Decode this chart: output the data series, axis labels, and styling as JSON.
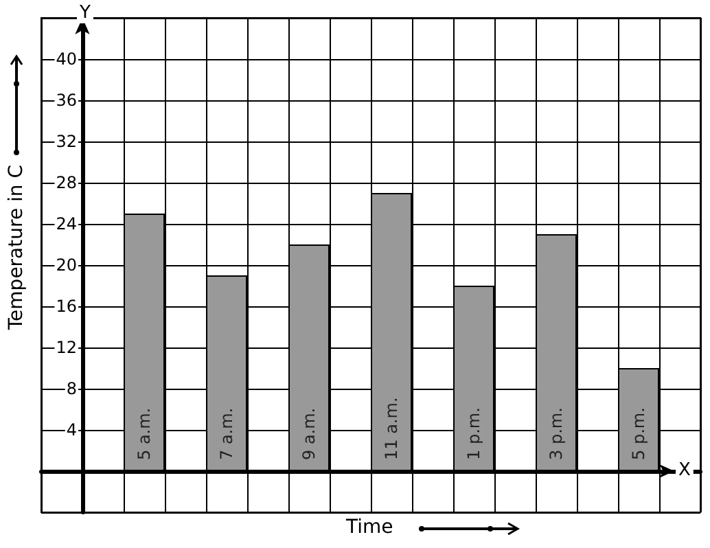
{
  "chart_data": {
    "type": "bar",
    "xlabel": "Time",
    "ylabel": "Temperature in C",
    "annotations": [
      "Y",
      "X"
    ],
    "categories": [
      "5 a.m.",
      "7 a.m.",
      "9 a.m.",
      "11 a.m.",
      "1 p.m.",
      "3 p.m.",
      "5 p.m."
    ],
    "values": [
      25,
      19,
      22,
      27,
      18,
      23,
      10
    ],
    "color": "#999999",
    "ylim": [
      -4,
      44
    ],
    "yticks": [
      4,
      8,
      12,
      16,
      20,
      24,
      28,
      32,
      36,
      40
    ],
    "grid": true
  }
}
